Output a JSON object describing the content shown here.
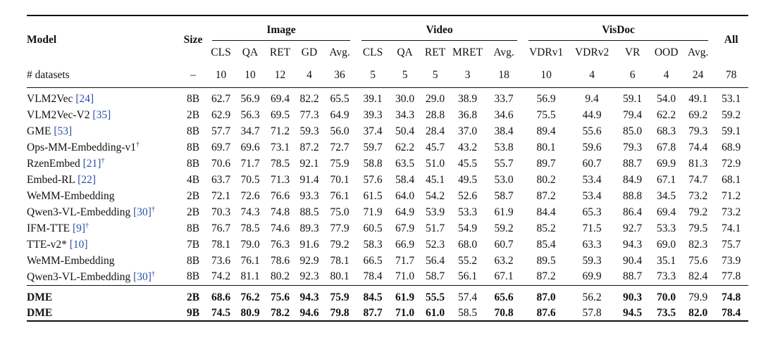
{
  "table": {
    "header": {
      "model": "Model",
      "size": "Size",
      "all": "All",
      "groups": [
        {
          "name": "Image",
          "columns": [
            "CLS",
            "QA",
            "RET",
            "GD",
            "Avg."
          ]
        },
        {
          "name": "Video",
          "columns": [
            "CLS",
            "QA",
            "RET",
            "MRET",
            "Avg."
          ]
        },
        {
          "name": "VisDoc",
          "columns": [
            "VDRv1",
            "VDRv2",
            "VR",
            "OOD",
            "Avg."
          ]
        }
      ]
    },
    "datasets": {
      "label": "# datasets",
      "size": "–",
      "values": [
        "10",
        "10",
        "12",
        "4",
        "36",
        "5",
        "5",
        "5",
        "3",
        "18",
        "10",
        "4",
        "6",
        "4",
        "24",
        "78"
      ]
    },
    "rows": [
      {
        "name": "VLM2Vec",
        "ref": "[24]",
        "size": "8B",
        "values": [
          "62.7",
          "56.9",
          "69.4",
          "82.2",
          "65.5",
          "39.1",
          "30.0",
          "29.0",
          "38.9",
          "33.7",
          "56.9",
          "9.4",
          "59.1",
          "54.0",
          "49.1",
          "53.1"
        ]
      },
      {
        "name": "VLM2Vec-V2",
        "ref": "[35]",
        "size": "2B",
        "values": [
          "62.9",
          "56.3",
          "69.5",
          "77.3",
          "64.9",
          "39.3",
          "34.3",
          "28.8",
          "36.8",
          "34.6",
          "75.5",
          "44.9",
          "79.4",
          "62.2",
          "69.2",
          "59.2"
        ]
      },
      {
        "name": "GME",
        "ref": "[53]",
        "size": "8B",
        "values": [
          "57.7",
          "34.7",
          "71.2",
          "59.3",
          "56.0",
          "37.4",
          "50.4",
          "28.4",
          "37.0",
          "38.4",
          "89.4",
          "55.6",
          "85.0",
          "68.3",
          "79.3",
          "59.1"
        ]
      },
      {
        "name": "Ops-MM-Embedding-v1",
        "mark": "†",
        "size": "8B",
        "values": [
          "69.7",
          "69.6",
          "73.1",
          "87.2",
          "72.7",
          "59.7",
          "62.2",
          "45.7",
          "43.2",
          "53.8",
          "80.1",
          "59.6",
          "79.3",
          "67.8",
          "74.4",
          "68.9"
        ]
      },
      {
        "name": "RzenEmbed",
        "ref": "[21]",
        "mark": "†",
        "size": "8B",
        "values": [
          "70.6",
          "71.7",
          "78.5",
          "92.1",
          "75.9",
          "58.8",
          "63.5",
          "51.0",
          "45.5",
          "55.7",
          "89.7",
          "60.7",
          "88.7",
          "69.9",
          "81.3",
          "72.9"
        ]
      },
      {
        "name": "Embed-RL",
        "ref": "[22]",
        "size": "4B",
        "values": [
          "63.7",
          "70.5",
          "71.3",
          "91.4",
          "70.1",
          "57.6",
          "58.4",
          "45.1",
          "49.5",
          "53.0",
          "80.2",
          "53.4",
          "84.9",
          "67.1",
          "74.7",
          "68.1"
        ]
      },
      {
        "name": "WeMM-Embedding",
        "size": "2B",
        "values": [
          "72.1",
          "72.6",
          "76.6",
          "93.3",
          "76.1",
          "61.5",
          "64.0",
          "54.2",
          "52.6",
          "58.7",
          "87.2",
          "53.4",
          "88.8",
          "34.5",
          "73.2",
          "71.2"
        ]
      },
      {
        "name": "Qwen3-VL-Embedding",
        "ref": "[30]",
        "mark": "†",
        "size": "2B",
        "values": [
          "70.3",
          "74.3",
          "74.8",
          "88.5",
          "75.0",
          "71.9",
          "64.9",
          "53.9",
          "53.3",
          "61.9",
          "84.4",
          "65.3",
          "86.4",
          "69.4",
          "79.2",
          "73.2"
        ]
      },
      {
        "name": "IFM-TTE",
        "ref": "[9]",
        "mark": "†",
        "size": "8B",
        "values": [
          "76.7",
          "78.5",
          "74.6",
          "89.3",
          "77.9",
          "60.5",
          "67.9",
          "51.7",
          "54.9",
          "59.2",
          "85.2",
          "71.5",
          "92.7",
          "53.3",
          "79.5",
          "74.1"
        ]
      },
      {
        "name": "TTE-v2*",
        "ref": "[10]",
        "size": "7B",
        "values": [
          "78.1",
          "79.0",
          "76.3",
          "91.6",
          "79.2",
          "58.3",
          "66.9",
          "52.3",
          "68.0",
          "60.7",
          "85.4",
          "63.3",
          "94.3",
          "69.0",
          "82.3",
          "75.7"
        ]
      },
      {
        "name": "WeMM-Embedding",
        "size": "8B",
        "values": [
          "73.6",
          "76.1",
          "78.6",
          "92.9",
          "78.1",
          "66.5",
          "71.7",
          "56.4",
          "55.2",
          "63.2",
          "89.5",
          "59.3",
          "90.4",
          "35.1",
          "75.6",
          "73.9"
        ]
      },
      {
        "name": "Qwen3-VL-Embedding",
        "ref": "[30]",
        "mark": "†",
        "size": "8B",
        "values": [
          "74.2",
          "81.1",
          "80.2",
          "92.3",
          "80.1",
          "78.4",
          "71.0",
          "58.7",
          "56.1",
          "67.1",
          "87.2",
          "69.9",
          "88.7",
          "73.3",
          "82.4",
          "77.8"
        ]
      }
    ],
    "final_rows": [
      {
        "name": "DME",
        "size": "2B",
        "values": [
          "68.6",
          "76.2",
          "75.6",
          "94.3",
          "75.9",
          "84.5",
          "61.9",
          "55.5",
          "57.4",
          "65.6",
          "87.0",
          "56.2",
          "90.3",
          "70.0",
          "79.9",
          "74.8"
        ],
        "bold": [
          true,
          true,
          true,
          true,
          true,
          true,
          true,
          true,
          false,
          true,
          true,
          false,
          true,
          true,
          false,
          true
        ]
      },
      {
        "name": "DME",
        "size": "9B",
        "values": [
          "74.5",
          "80.9",
          "78.2",
          "94.6",
          "79.8",
          "87.7",
          "71.0",
          "61.0",
          "58.5",
          "70.8",
          "87.6",
          "57.8",
          "94.5",
          "73.5",
          "82.0",
          "78.4"
        ],
        "bold": [
          true,
          true,
          true,
          true,
          true,
          true,
          true,
          true,
          false,
          true,
          true,
          false,
          true,
          true,
          true,
          true
        ]
      }
    ]
  }
}
